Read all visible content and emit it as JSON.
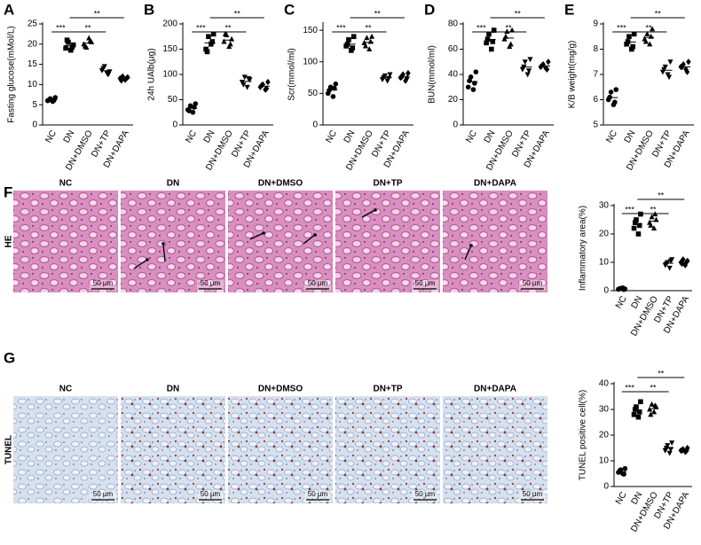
{
  "chart_data": [
    {
      "type": "dot",
      "panel": "A",
      "ylabel": "Fasting glucose(mMol/L)",
      "categories": [
        "NC",
        "DN",
        "DN+DMSO",
        "DN+TP",
        "DN+DAPA"
      ],
      "values": [
        [
          6.0,
          6.5,
          5.8,
          6.8,
          6.2,
          6.1
        ],
        [
          19.0,
          20.5,
          18.5,
          19.8,
          21.0,
          19.2
        ],
        [
          20.0,
          19.2,
          21.5,
          20.5,
          19.5,
          20.8
        ],
        [
          13.5,
          14.5,
          12.8,
          13.2,
          14.0,
          12.5
        ],
        [
          11.5,
          12.0,
          11.2,
          11.8,
          11.0,
          11.5
        ]
      ],
      "ylim": [
        0,
        25
      ],
      "yticks": [
        0,
        5,
        10,
        15,
        20,
        25
      ],
      "color": "#000000",
      "annotations": [
        {
          "text": "***",
          "between": [
            "NC",
            "DN"
          ]
        },
        {
          "text": "**",
          "between": [
            "DN",
            "DN+TP"
          ]
        },
        {
          "text": "**",
          "between": [
            "DN",
            "DN+DAPA"
          ]
        }
      ]
    },
    {
      "type": "dot",
      "panel": "B",
      "ylabel": "24h UAlb(μg)",
      "categories": [
        "NC",
        "DN",
        "DN+DMSO",
        "DN+TP",
        "DN+DAPA"
      ],
      "values": [
        [
          30,
          38,
          25,
          42,
          28,
          35
        ],
        [
          150,
          175,
          160,
          180,
          145,
          165
        ],
        [
          165,
          178,
          155,
          170,
          180,
          160
        ],
        [
          85,
          95,
          75,
          90,
          80,
          92
        ],
        [
          75,
          80,
          70,
          85,
          78,
          72
        ]
      ],
      "ylim": [
        0,
        200
      ],
      "yticks": [
        0,
        50,
        100,
        150,
        200
      ],
      "color": "#000000",
      "annotations": [
        {
          "text": "***",
          "between": [
            "NC",
            "DN"
          ]
        },
        {
          "text": "**",
          "between": [
            "DN",
            "DN+TP"
          ]
        },
        {
          "text": "**",
          "between": [
            "DN",
            "DN+DAPA"
          ]
        }
      ]
    },
    {
      "type": "dot",
      "panel": "C",
      "ylabel": "Scr(mmol/ml)",
      "categories": [
        "NC",
        "DN",
        "DN+DMSO",
        "DN+TP",
        "DN+DAPA"
      ],
      "values": [
        [
          50,
          60,
          45,
          65,
          55,
          58
        ],
        [
          125,
          135,
          118,
          140,
          128,
          122
        ],
        [
          130,
          138,
          120,
          140,
          125,
          132
        ],
        [
          72,
          78,
          70,
          80,
          75,
          74
        ],
        [
          75,
          80,
          70,
          82,
          76,
          74
        ]
      ],
      "ylim": [
        0,
        160
      ],
      "yticks": [
        0,
        50,
        100,
        150
      ],
      "color": "#000000",
      "annotations": [
        {
          "text": "***",
          "between": [
            "NC",
            "DN"
          ]
        },
        {
          "text": "**",
          "between": [
            "DN",
            "DN+TP"
          ]
        },
        {
          "text": "**",
          "between": [
            "DN",
            "DN+DAPA"
          ]
        }
      ]
    },
    {
      "type": "dot",
      "panel": "D",
      "ylabel": "BUN(mmol/ml)",
      "categories": [
        "NC",
        "DN",
        "DN+DMSO",
        "DN+TP",
        "DN+DAPA"
      ],
      "values": [
        [
          30,
          38,
          28,
          42,
          35,
          33
        ],
        [
          65,
          72,
          60,
          75,
          68,
          66
        ],
        [
          68,
          74,
          62,
          75,
          70,
          64
        ],
        [
          44,
          50,
          40,
          52,
          46,
          43
        ],
        [
          46,
          48,
          45,
          50,
          47,
          44
        ]
      ],
      "ylim": [
        0,
        80
      ],
      "yticks": [
        0,
        20,
        40,
        60,
        80
      ],
      "color": "#000000",
      "annotations": [
        {
          "text": "***",
          "between": [
            "NC",
            "DN"
          ]
        },
        {
          "text": "**",
          "between": [
            "DN",
            "DN+TP"
          ]
        },
        {
          "text": "**",
          "between": [
            "DN",
            "DN+DAPA"
          ]
        }
      ]
    },
    {
      "type": "dot",
      "panel": "E",
      "ylabel": "K/B weight(mg/g)",
      "categories": [
        "NC",
        "DN",
        "DN+DMSO",
        "DN+TP",
        "DN+DAPA"
      ],
      "values": [
        [
          6.0,
          6.3,
          5.8,
          6.4,
          6.1,
          5.9
        ],
        [
          8.2,
          8.5,
          8.0,
          8.6,
          8.3,
          8.1
        ],
        [
          8.4,
          8.6,
          8.2,
          8.8,
          8.3,
          8.5
        ],
        [
          7.1,
          7.3,
          7.0,
          7.5,
          7.2,
          6.9
        ],
        [
          7.3,
          7.4,
          7.2,
          7.5,
          7.3,
          7.1
        ]
      ],
      "ylim": [
        5,
        9
      ],
      "yticks": [
        5,
        6,
        7,
        8,
        9
      ],
      "color": "#000000",
      "annotations": [
        {
          "text": "***",
          "between": [
            "NC",
            "DN"
          ]
        },
        {
          "text": "**",
          "between": [
            "DN",
            "DN+TP"
          ]
        },
        {
          "text": "**",
          "between": [
            "DN",
            "DN+DAPA"
          ]
        }
      ]
    },
    {
      "type": "dot",
      "panel": "F",
      "ylabel": "Inflammatory area(%)",
      "categories": [
        "NC",
        "DN",
        "DN+DMSO",
        "DN+TP",
        "DN+DAPA"
      ],
      "values": [
        [
          0.5,
          0.8,
          1.0,
          0.6,
          0.7,
          0.4
        ],
        [
          22,
          25,
          20,
          27,
          24,
          23
        ],
        [
          24,
          26,
          22,
          25,
          23,
          27
        ],
        [
          9,
          10,
          8,
          11,
          9.5,
          10.5
        ],
        [
          10,
          11,
          9,
          10.5,
          9.5,
          10
        ]
      ],
      "ylim": [
        0,
        30
      ],
      "yticks": [
        0,
        10,
        20,
        30
      ],
      "color": "#000000",
      "annotations": [
        {
          "text": "***",
          "between": [
            "NC",
            "DN"
          ]
        },
        {
          "text": "**",
          "between": [
            "DN",
            "DN+TP"
          ]
        },
        {
          "text": "**",
          "between": [
            "DN",
            "DN+DAPA"
          ]
        }
      ]
    },
    {
      "type": "dot",
      "panel": "G",
      "ylabel": "TUNEL positive cell(%)",
      "categories": [
        "NC",
        "DN",
        "DN+DMSO",
        "DN+TP",
        "DN+DAPA"
      ],
      "values": [
        [
          5.5,
          6.5,
          5,
          7,
          6,
          4.8
        ],
        [
          28,
          31,
          27,
          33,
          30,
          29
        ],
        [
          30,
          32,
          29,
          31,
          28,
          31.5
        ],
        [
          14,
          16,
          13,
          17,
          15,
          14.5
        ],
        [
          14,
          14.5,
          13.5,
          15,
          14,
          13.8
        ]
      ],
      "ylim": [
        0,
        40
      ],
      "yticks": [
        0,
        10,
        20,
        30,
        40
      ],
      "color": "#000000",
      "annotations": [
        {
          "text": "***",
          "between": [
            "NC",
            "DN"
          ]
        },
        {
          "text": "**",
          "between": [
            "DN",
            "DN+TP"
          ]
        },
        {
          "text": "**",
          "between": [
            "DN",
            "DN+DAPA"
          ]
        }
      ]
    }
  ],
  "micrographs": [
    {
      "stain": "HE",
      "columns": [
        "NC",
        "DN",
        "DN+DMSO",
        "DN+TP",
        "DN+DAPA"
      ],
      "scale_bar": "50 µm"
    },
    {
      "stain": "TUNEL",
      "columns": [
        "NC",
        "DN",
        "DN+DMSO",
        "DN+TP",
        "DN+DAPA"
      ],
      "scale_bar": "50 µm"
    }
  ]
}
